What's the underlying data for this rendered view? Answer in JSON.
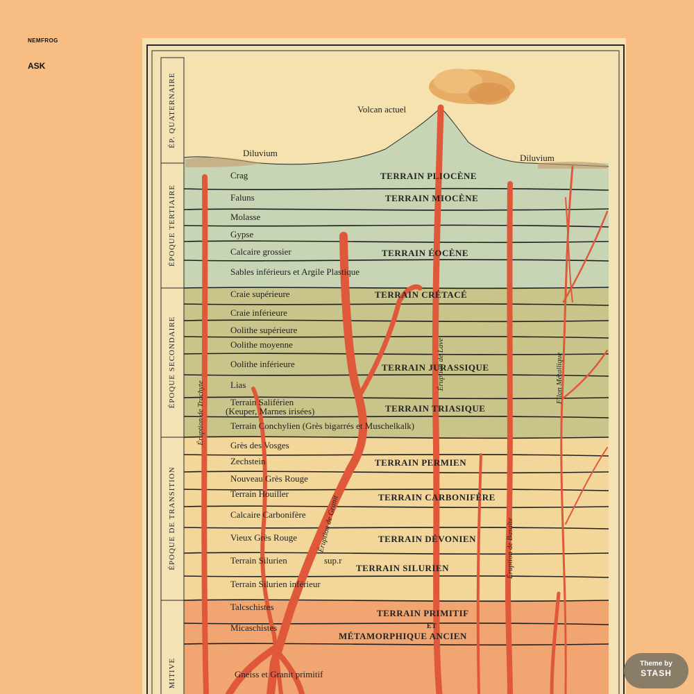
{
  "blog": {
    "title": "NEMFROG",
    "nav_ask": "ASK"
  },
  "theme_badge": {
    "line1": "Theme by",
    "line2": "STASH"
  },
  "colors": {
    "page_bg": "#f8bd82",
    "paper": "#f3e2b4",
    "lava": "#e0583a",
    "quaternary_band": "#f6e2ae",
    "tertiary_band": "#c7d5b4",
    "secondary_band": "#c9c48a",
    "transition_band": "#f3d79a",
    "primitive_band": "#f1a672",
    "badge_bg": "#8a7d68"
  },
  "chart": {
    "epochs": [
      "ÉP. QUATERNAIRE",
      "ÉPOQUE   TERTIAIRE",
      "ÉPOQUE   SECONDAIRE",
      "ÉPOQUE  DE  TRANSITION",
      "MITIVE"
    ],
    "volcano_label": "Volcan actuel",
    "diluvium_left": "Diluvium",
    "diluvium_right": "Diluvium",
    "layers": [
      "Crag",
      "Faluns",
      "Molasse",
      "Gypse",
      "Calcaire grossier",
      "Sables inférieurs et Argile Plastique",
      "Craie supérieure",
      "Craie inférieure",
      "Oolithe supérieure",
      "Oolithe moyenne",
      "Oolithe inférieure",
      "Lias",
      "Terrain Saliférien",
      "(Keuper, Marnes irisées)",
      "Terrain Conchylien (Grès bigarrés et Muschelkalk)",
      "Grès des Vosges",
      "Zechstein",
      "Nouveau Grès Rouge",
      "Terrain Houiller",
      "Calcaire Carbonifère",
      "Vieux Grès Rouge",
      "Terrain Silurien",
      "sup.r",
      "Terrain Silurien inférieur",
      "Talcschistes",
      "Micaschistes",
      "Gneiss et Granit primitif"
    ],
    "terrains": [
      "TERRAIN  PLIOCÈNE",
      "TERRAIN  MIOCÈNE",
      "TERRAIN  ÉOCÈNE",
      "TERRAIN  CRÉTACÉ",
      "TERRAIN  JURASSIQUE",
      "TERRAIN  TRIASIQUE",
      "TERRAIN  PERMIEN",
      "TERRAIN  CARBONIFÈRE",
      "TERRAIN  DÉVONIEN",
      "TERRAIN  SILURIEN",
      "TERRAIN  PRIMITIF",
      "ET",
      "MÉTAMORPHIQUE  ANCIEN"
    ],
    "eruptions": [
      "Éruption  de  Trachyte",
      "Éruption  de  Granit",
      "Éruption  de  Lave",
      "Éruption  de  Basalte",
      "Filon  Métallique"
    ]
  }
}
